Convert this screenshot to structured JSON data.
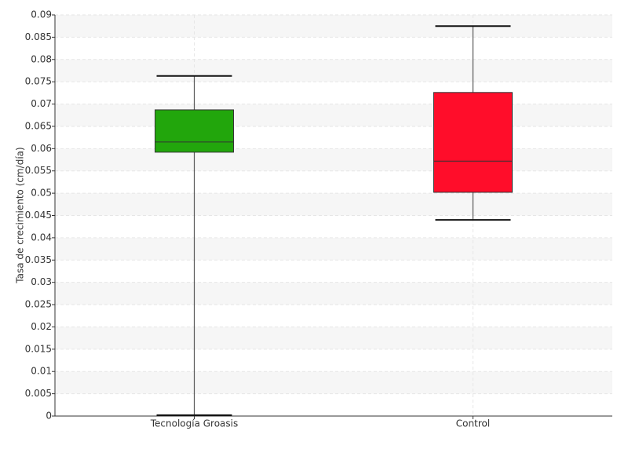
{
  "chart_data": {
    "type": "box",
    "y_label": "Tasa de crecimiento (cm/día)",
    "categories": [
      "Tecnología Groasis",
      "Control"
    ],
    "boxes": [
      {
        "color": "#22a60c",
        "min": 0.0002,
        "q1": 0.0592,
        "median": 0.0615,
        "q3": 0.0687,
        "max": 0.0763
      },
      {
        "color": "#ff0d2a",
        "min": 0.044,
        "q1": 0.0502,
        "median": 0.0572,
        "q3": 0.0726,
        "max": 0.0875
      }
    ],
    "ylim": [
      0,
      0.09
    ],
    "yticks": [
      0,
      0.005,
      0.01,
      0.015,
      0.02,
      0.025,
      0.03,
      0.035,
      0.04,
      0.045,
      0.05,
      0.055,
      0.06,
      0.065,
      0.07,
      0.075,
      0.08,
      0.085,
      0.09
    ],
    "grid": true
  }
}
